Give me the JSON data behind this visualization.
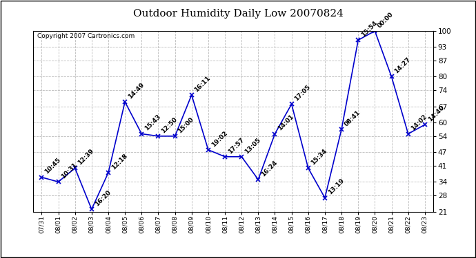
{
  "title": "Outdoor Humidity Daily Low 20070824",
  "copyright": "Copyright 2007 Cartronics.com",
  "x_labels": [
    "07/31",
    "08/01",
    "08/02",
    "08/03",
    "08/04",
    "08/05",
    "08/06",
    "08/07",
    "08/08",
    "08/09",
    "08/10",
    "08/11",
    "08/12",
    "08/13",
    "08/14",
    "08/15",
    "08/16",
    "08/17",
    "08/18",
    "08/19",
    "08/20",
    "08/21",
    "08/22",
    "08/23"
  ],
  "y_values": [
    36,
    34,
    40,
    22,
    38,
    69,
    55,
    54,
    54,
    72,
    48,
    45,
    45,
    35,
    55,
    68,
    40,
    27,
    57,
    96,
    100,
    80,
    55,
    59
  ],
  "annotations": [
    "10:45",
    "10:31",
    "12:39",
    "16:20",
    "12:18",
    "14:49",
    "15:43",
    "12:50",
    "15:00",
    "16:11",
    "19:02",
    "17:57",
    "13:05",
    "16:24",
    "14:01",
    "17:05",
    "15:34",
    "13:19",
    "08:41",
    "15:54",
    "00:00",
    "14:27",
    "14:02",
    "14:40"
  ],
  "line_color": "#0000cc",
  "marker_color": "#0000cc",
  "bg_color": "#ffffff",
  "grid_color": "#bbbbbb",
  "title_fontsize": 11,
  "annotation_fontsize": 6.5,
  "copyright_fontsize": 6.5,
  "y_min": 21,
  "y_max": 100,
  "y_ticks": [
    21,
    28,
    34,
    41,
    47,
    54,
    60,
    67,
    74,
    80,
    87,
    93,
    100
  ]
}
